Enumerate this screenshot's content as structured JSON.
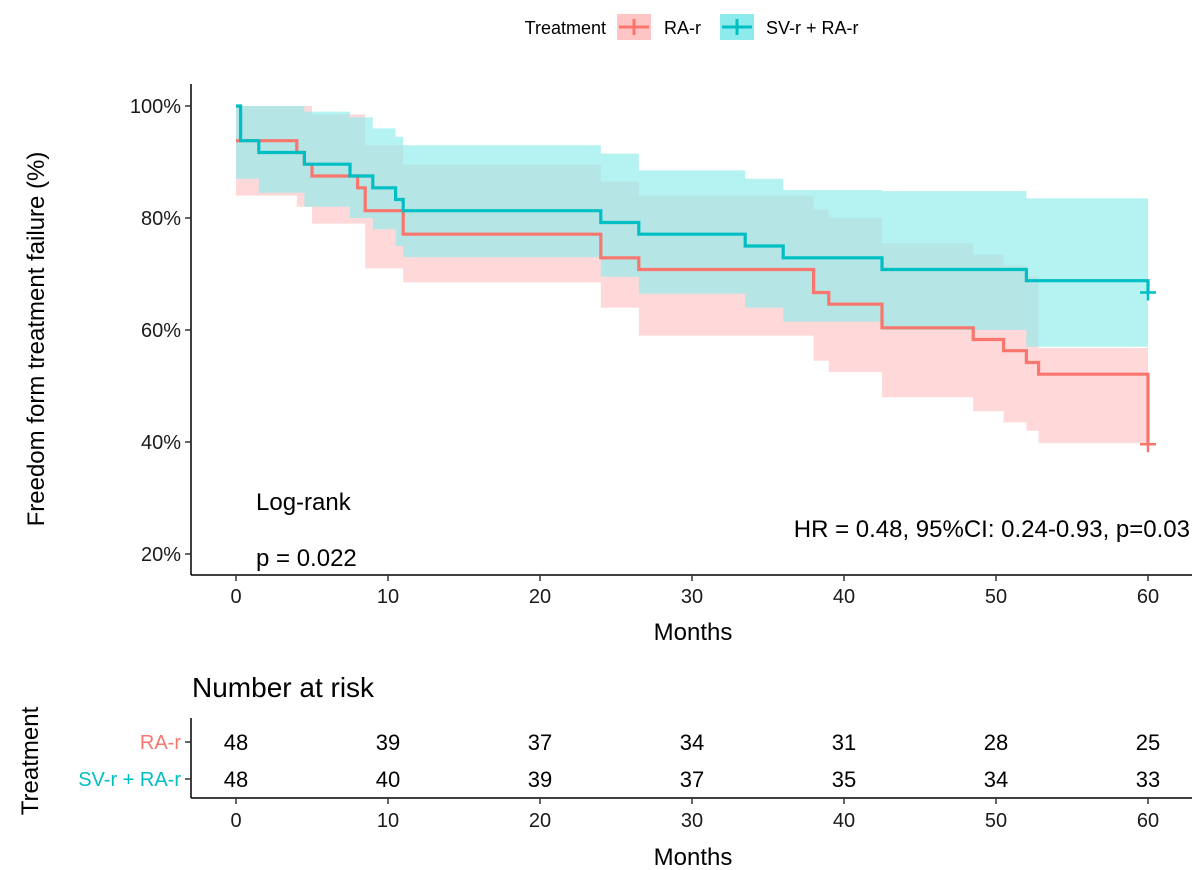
{
  "chart_data": [
    {
      "type": "line",
      "subtype": "kaplan-meier",
      "title": "",
      "xlabel": "Months",
      "ylabel": "Freedom form treatment failure (%)",
      "xlim": [
        0,
        60
      ],
      "ylim": [
        20,
        100
      ],
      "x_ticks": [
        0,
        10,
        20,
        30,
        40,
        50,
        60
      ],
      "y_ticks": [
        20,
        40,
        60,
        80,
        100
      ],
      "y_tick_labels": [
        "20%",
        "40%",
        "60%",
        "80%",
        "100%"
      ],
      "grid": false,
      "legend": {
        "title": "Treatment",
        "placement": "top",
        "entries": [
          "RA-r",
          "SV-r + RA-r"
        ]
      },
      "annotations": {
        "logrank_label": "Log-rank",
        "logrank_p": "p = 0.022",
        "hr_text": "HR = 0.48, 95%CI: 0.24-0.93, p=0.03"
      },
      "series": [
        {
          "name": "RA-r",
          "color": "#F8766D",
          "band_color": "#FFC5C5",
          "steps": [
            [
              0,
              93.8
            ],
            [
              4,
              91.7
            ],
            [
              4.5,
              89.6
            ],
            [
              5,
              87.5
            ],
            [
              8,
              85.4
            ],
            [
              8.5,
              81.3
            ],
            [
              11,
              77.1
            ],
            [
              24,
              72.9
            ],
            [
              26.5,
              70.8
            ],
            [
              38,
              66.7
            ],
            [
              39,
              64.6
            ],
            [
              42.5,
              60.4
            ],
            [
              48.5,
              58.3
            ],
            [
              50.5,
              56.3
            ],
            [
              52,
              54.2
            ],
            [
              52.8,
              52.1
            ],
            [
              60,
              39.6
            ]
          ],
          "lower": [
            [
              0,
              84.0
            ],
            [
              4,
              82.0
            ],
            [
              5,
              79.0
            ],
            [
              8.5,
              71.0
            ],
            [
              11,
              68.5
            ],
            [
              24,
              64.0
            ],
            [
              26.5,
              59.0
            ],
            [
              38,
              54.5
            ],
            [
              39,
              52.5
            ],
            [
              42.5,
              48.0
            ],
            [
              48.5,
              45.5
            ],
            [
              50.5,
              43.5
            ],
            [
              52,
              42.0
            ],
            [
              52.8,
              39.8
            ],
            [
              60,
              39.8
            ]
          ],
          "upper": [
            [
              0,
              100
            ],
            [
              4,
              100
            ],
            [
              5,
              98.5
            ],
            [
              8.5,
              93.0
            ],
            [
              11,
              89.5
            ],
            [
              24,
              86.5
            ],
            [
              26.5,
              84.0
            ],
            [
              38,
              81.5
            ],
            [
              39,
              80.0
            ],
            [
              42.5,
              75.5
            ],
            [
              48.5,
              73.5
            ],
            [
              50.5,
              71.5
            ],
            [
              52,
              69.5
            ],
            [
              52.8,
              56.8
            ],
            [
              60,
              56.8
            ]
          ],
          "censor": [
            [
              60,
              39.6
            ]
          ]
        },
        {
          "name": "SV-r + RA-r",
          "color": "#00BFC4",
          "band_color": "#8EEBEB",
          "steps": [
            [
              0,
              100
            ],
            [
              0.3,
              93.8
            ],
            [
              1.5,
              91.7
            ],
            [
              4.5,
              89.6
            ],
            [
              7.5,
              87.5
            ],
            [
              9,
              85.4
            ],
            [
              10.5,
              83.3
            ],
            [
              11,
              81.3
            ],
            [
              24,
              79.2
            ],
            [
              26.5,
              77.1
            ],
            [
              33.5,
              75.0
            ],
            [
              36,
              72.9
            ],
            [
              42.5,
              70.8
            ],
            [
              52,
              68.8
            ],
            [
              60,
              66.7
            ]
          ],
          "lower": [
            [
              0,
              87.0
            ],
            [
              1.5,
              84.5
            ],
            [
              4.5,
              82.0
            ],
            [
              7.5,
              80.0
            ],
            [
              9,
              78.0
            ],
            [
              10.5,
              75.0
            ],
            [
              11,
              73.0
            ],
            [
              24,
              69.5
            ],
            [
              26.5,
              66.5
            ],
            [
              33.5,
              64.0
            ],
            [
              36,
              61.5
            ],
            [
              42.5,
              60.0
            ],
            [
              52,
              57.0
            ],
            [
              60,
              57.0
            ]
          ],
          "upper": [
            [
              0,
              100
            ],
            [
              4.5,
              99.0
            ],
            [
              7.5,
              98.0
            ],
            [
              9,
              96.0
            ],
            [
              10.5,
              94.5
            ],
            [
              11,
              93.0
            ],
            [
              24,
              91.5
            ],
            [
              26.5,
              88.5
            ],
            [
              33.5,
              87.0
            ],
            [
              36,
              85.0
            ],
            [
              42.5,
              84.8
            ],
            [
              52,
              83.5
            ],
            [
              60,
              83.5
            ]
          ],
          "censor": [
            [
              60,
              66.7
            ]
          ]
        }
      ]
    },
    {
      "type": "table",
      "title": "Number at risk",
      "xlabel": "Months",
      "ylabel": "Treatment",
      "x_ticks": [
        0,
        10,
        20,
        30,
        40,
        50,
        60
      ],
      "rows": [
        {
          "label": "RA-r",
          "color": "#F8766D",
          "values": [
            48,
            39,
            37,
            34,
            31,
            28,
            25
          ]
        },
        {
          "label": "SV-r + RA-r",
          "color": "#00BFC4",
          "values": [
            48,
            40,
            39,
            37,
            35,
            34,
            33
          ]
        }
      ]
    }
  ]
}
